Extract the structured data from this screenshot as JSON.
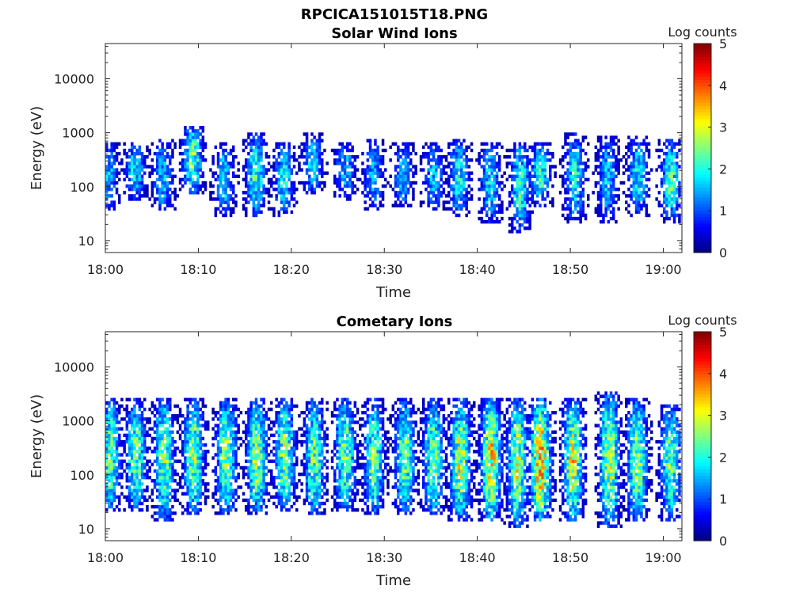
{
  "figure_title": "RPCICA151015T18.PNG",
  "chart_data": [
    {
      "type": "heatmap",
      "title": "Solar Wind Ions",
      "xlabel": "Time",
      "ylabel": "Energy (eV)",
      "x_ticks": [
        "18:00",
        "18:10",
        "18:20",
        "18:30",
        "18:40",
        "18:50",
        "19:00"
      ],
      "x_range_minutes": [
        0,
        62
      ],
      "y_scale": "log",
      "y_range": [
        6,
        45000
      ],
      "y_ticks": [
        10,
        100,
        1000,
        10000
      ],
      "y_tick_labels": [
        "10",
        "100",
        "1000",
        "10000"
      ],
      "colorbar": {
        "label": "Log counts",
        "range": [
          0,
          5
        ],
        "ticks": [
          "0",
          "1",
          "2",
          "3",
          "4",
          "5"
        ],
        "colormap": "jet"
      },
      "grid": false,
      "bursts": [
        {
          "t": 0.3,
          "e_lo": 50,
          "e_hi": 500,
          "peak": 1.7
        },
        {
          "t": 3.2,
          "e_lo": 80,
          "e_hi": 500,
          "peak": 2.0
        },
        {
          "t": 6.2,
          "e_lo": 45,
          "e_hi": 550,
          "peak": 1.8
        },
        {
          "t": 9.4,
          "e_lo": 100,
          "e_hi": 1000,
          "peak": 2.6
        },
        {
          "t": 12.8,
          "e_lo": 40,
          "e_hi": 500,
          "peak": 1.8
        },
        {
          "t": 16.2,
          "e_lo": 40,
          "e_hi": 700,
          "peak": 2.3
        },
        {
          "t": 19.2,
          "e_lo": 40,
          "e_hi": 500,
          "peak": 1.9
        },
        {
          "t": 22.3,
          "e_lo": 100,
          "e_hi": 700,
          "peak": 1.8
        },
        {
          "t": 25.8,
          "e_lo": 80,
          "e_hi": 500,
          "peak": 1.7
        },
        {
          "t": 28.8,
          "e_lo": 50,
          "e_hi": 550,
          "peak": 1.6
        },
        {
          "t": 32.0,
          "e_lo": 60,
          "e_hi": 500,
          "peak": 1.7
        },
        {
          "t": 35.3,
          "e_lo": 50,
          "e_hi": 500,
          "peak": 1.7
        },
        {
          "t": 38.0,
          "e_lo": 40,
          "e_hi": 550,
          "peak": 2.1
        },
        {
          "t": 41.4,
          "e_lo": 30,
          "e_hi": 500,
          "peak": 2.0
        },
        {
          "t": 44.6,
          "e_lo": 20,
          "e_hi": 500,
          "peak": 2.2
        },
        {
          "t": 46.8,
          "e_lo": 60,
          "e_hi": 500,
          "peak": 2.2
        },
        {
          "t": 50.5,
          "e_lo": 30,
          "e_hi": 700,
          "peak": 2.0
        },
        {
          "t": 54.0,
          "e_lo": 30,
          "e_hi": 600,
          "peak": 1.8
        },
        {
          "t": 57.3,
          "e_lo": 40,
          "e_hi": 600,
          "peak": 2.0
        },
        {
          "t": 60.8,
          "e_lo": 30,
          "e_hi": 550,
          "peak": 2.3
        }
      ]
    },
    {
      "type": "heatmap",
      "title": "Cometary Ions",
      "xlabel": "Time",
      "ylabel": "Energy (eV)",
      "x_ticks": [
        "18:00",
        "18:10",
        "18:20",
        "18:30",
        "18:40",
        "18:50",
        "19:00"
      ],
      "x_range_minutes": [
        0,
        62
      ],
      "y_scale": "log",
      "y_range": [
        6,
        45000
      ],
      "y_ticks": [
        10,
        100,
        1000,
        10000
      ],
      "y_tick_labels": [
        "10",
        "100",
        "1000",
        "10000"
      ],
      "colorbar": {
        "label": "Log counts",
        "range": [
          0,
          5
        ],
        "ticks": [
          "0",
          "1",
          "2",
          "3",
          "4",
          "5"
        ],
        "colormap": "jet"
      },
      "grid": false,
      "bursts": [
        {
          "t": 0.5,
          "e_lo": 30,
          "e_hi": 1800,
          "peak": 2.6
        },
        {
          "t": 3.3,
          "e_lo": 30,
          "e_hi": 1800,
          "peak": 2.6
        },
        {
          "t": 6.3,
          "e_lo": 20,
          "e_hi": 2000,
          "peak": 2.7
        },
        {
          "t": 9.5,
          "e_lo": 25,
          "e_hi": 1800,
          "peak": 2.8
        },
        {
          "t": 13.0,
          "e_lo": 25,
          "e_hi": 1800,
          "peak": 2.8
        },
        {
          "t": 16.3,
          "e_lo": 25,
          "e_hi": 1800,
          "peak": 2.9
        },
        {
          "t": 19.3,
          "e_lo": 30,
          "e_hi": 1800,
          "peak": 2.8
        },
        {
          "t": 22.5,
          "e_lo": 25,
          "e_hi": 1800,
          "peak": 2.6
        },
        {
          "t": 25.8,
          "e_lo": 30,
          "e_hi": 2000,
          "peak": 2.7
        },
        {
          "t": 28.9,
          "e_lo": 25,
          "e_hi": 1800,
          "peak": 2.6
        },
        {
          "t": 32.2,
          "e_lo": 25,
          "e_hi": 1800,
          "peak": 2.6
        },
        {
          "t": 35.3,
          "e_lo": 25,
          "e_hi": 1800,
          "peak": 2.7
        },
        {
          "t": 38.2,
          "e_lo": 20,
          "e_hi": 1800,
          "peak": 3.0
        },
        {
          "t": 41.5,
          "e_lo": 20,
          "e_hi": 1800,
          "peak": 3.4
        },
        {
          "t": 44.3,
          "e_lo": 15,
          "e_hi": 1800,
          "peak": 3.0
        },
        {
          "t": 46.8,
          "e_lo": 20,
          "e_hi": 1800,
          "peak": 3.7
        },
        {
          "t": 50.3,
          "e_lo": 20,
          "e_hi": 1800,
          "peak": 3.2
        },
        {
          "t": 54.2,
          "e_lo": 15,
          "e_hi": 2500,
          "peak": 3.0
        },
        {
          "t": 57.2,
          "e_lo": 20,
          "e_hi": 1800,
          "peak": 2.9
        },
        {
          "t": 60.8,
          "e_lo": 20,
          "e_hi": 1500,
          "peak": 2.6
        }
      ]
    }
  ]
}
